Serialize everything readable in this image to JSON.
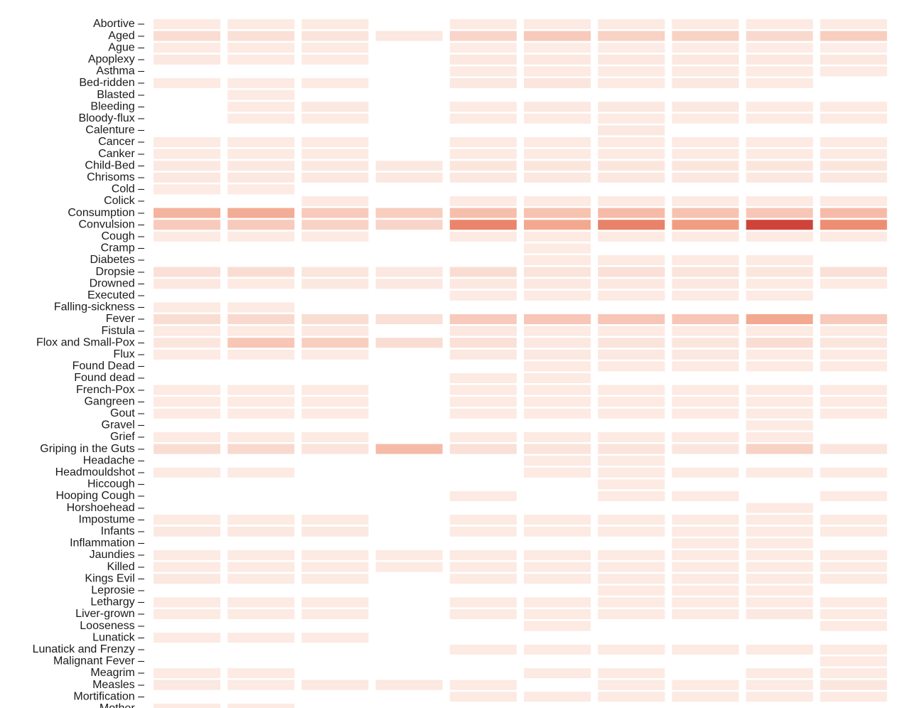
{
  "chart_data": {
    "type": "heatmap",
    "title": "",
    "xlabel": "",
    "ylabel": "",
    "color_scale": {
      "low": "#fdf3ef",
      "high": "#d0433a",
      "empty": "#ffffff"
    },
    "columns": [
      "",
      "",
      "",
      "",
      "",
      "",
      "",
      "",
      "",
      ""
    ],
    "rows": [
      "Abortive",
      "Aged",
      "Ague",
      "Apoplexy",
      "Asthma",
      "Bed-ridden",
      "Blasted",
      "Bleeding",
      "Bloody-flux",
      "Calenture",
      "Cancer",
      "Canker",
      "Child-Bed",
      "Chrisoms",
      "Cold",
      "Colick",
      "Consumption",
      "Convulsion",
      "Cough",
      "Cramp",
      "Diabetes",
      "Dropsie",
      "Drowned",
      "Executed",
      "Falling-sickness",
      "Fever",
      "Fistula",
      "Flox and Small-Pox",
      "Flux",
      "Found Dead",
      "Found dead",
      "French-Pox",
      "Gangreen",
      "Gout",
      "Gravel",
      "Grief",
      "Griping in the Guts",
      "Headache",
      "Headmouldshot",
      "Hiccough",
      "Hooping Cough",
      "Horshoehead",
      "Impostume",
      "Infants",
      "Inflammation",
      "Jaundies",
      "Killed",
      "Kings Evil",
      "Leprosie",
      "Lethargy",
      "Liver-grown",
      "Looseness",
      "Lunatick",
      "Lunatick and Frenzy",
      "Malignant Fever",
      "Meagrim",
      "Measles",
      "Mortification",
      "Mother"
    ],
    "values": [
      [
        0.05,
        0.05,
        0.05,
        null,
        0.05,
        0.05,
        0.05,
        0.05,
        0.05,
        0.05
      ],
      [
        0.12,
        0.1,
        0.08,
        0.06,
        0.16,
        0.22,
        0.18,
        0.18,
        0.14,
        0.2
      ],
      [
        0.05,
        0.05,
        0.05,
        null,
        0.04,
        0.04,
        0.04,
        0.04,
        0.04,
        0.03
      ],
      [
        0.06,
        0.05,
        0.05,
        null,
        0.06,
        0.06,
        0.06,
        0.06,
        0.06,
        0.06
      ],
      [
        null,
        null,
        null,
        null,
        0.05,
        0.05,
        0.05,
        0.05,
        0.05,
        0.05
      ],
      [
        0.05,
        0.05,
        0.05,
        null,
        0.06,
        0.07,
        0.05,
        0.06,
        0.05,
        null
      ],
      [
        null,
        0.05,
        null,
        null,
        null,
        null,
        null,
        null,
        null,
        null
      ],
      [
        null,
        0.05,
        0.06,
        null,
        0.05,
        0.06,
        0.06,
        0.06,
        0.05,
        0.05
      ],
      [
        null,
        0.05,
        0.05,
        null,
        0.05,
        0.05,
        0.05,
        0.05,
        0.05,
        0.05
      ],
      [
        null,
        null,
        null,
        null,
        null,
        null,
        0.06,
        null,
        null,
        null
      ],
      [
        0.05,
        0.05,
        0.05,
        null,
        0.05,
        0.05,
        0.05,
        0.05,
        0.05,
        0.05
      ],
      [
        0.05,
        0.05,
        0.05,
        null,
        0.05,
        0.05,
        0.05,
        0.05,
        0.05,
        0.05
      ],
      [
        0.06,
        0.06,
        0.06,
        0.06,
        0.07,
        0.07,
        0.07,
        0.07,
        0.07,
        0.07
      ],
      [
        0.06,
        0.06,
        0.06,
        0.06,
        0.06,
        0.06,
        0.06,
        0.06,
        0.06,
        0.06
      ],
      [
        0.05,
        0.05,
        null,
        null,
        null,
        null,
        null,
        null,
        null,
        null
      ],
      [
        null,
        null,
        0.05,
        null,
        0.05,
        0.05,
        0.05,
        0.05,
        0.05,
        0.05
      ],
      [
        0.34,
        0.38,
        0.22,
        0.2,
        0.28,
        0.26,
        0.3,
        0.26,
        0.24,
        0.3
      ],
      [
        0.22,
        0.22,
        0.18,
        0.16,
        0.6,
        0.4,
        0.62,
        0.46,
        1.0,
        0.55
      ],
      [
        0.05,
        0.05,
        0.05,
        null,
        0.05,
        0.05,
        0.05,
        0.05,
        0.05,
        0.05
      ],
      [
        null,
        null,
        null,
        null,
        null,
        0.04,
        null,
        null,
        null,
        null
      ],
      [
        null,
        null,
        null,
        null,
        null,
        0.05,
        0.05,
        0.05,
        0.05,
        null
      ],
      [
        0.1,
        0.12,
        0.07,
        0.06,
        0.12,
        0.08,
        0.1,
        0.08,
        0.07,
        0.1
      ],
      [
        0.06,
        0.05,
        0.06,
        0.06,
        0.06,
        0.06,
        0.06,
        0.06,
        0.05,
        0.05
      ],
      [
        null,
        null,
        null,
        null,
        0.05,
        0.05,
        0.05,
        0.05,
        0.05,
        null
      ],
      [
        0.05,
        0.05,
        null,
        null,
        null,
        null,
        null,
        null,
        null,
        null
      ],
      [
        0.12,
        0.14,
        0.12,
        0.1,
        0.22,
        0.24,
        0.24,
        0.24,
        0.4,
        0.22
      ],
      [
        0.05,
        0.05,
        0.06,
        null,
        0.06,
        0.05,
        0.05,
        0.05,
        0.05,
        0.05
      ],
      [
        0.07,
        0.24,
        0.2,
        0.12,
        0.1,
        0.06,
        0.08,
        0.07,
        0.12,
        0.07
      ],
      [
        0.05,
        0.05,
        0.05,
        null,
        0.06,
        0.06,
        0.06,
        0.06,
        0.05,
        0.05
      ],
      [
        null,
        null,
        null,
        null,
        null,
        0.05,
        0.05,
        0.05,
        0.05,
        0.05
      ],
      [
        null,
        null,
        null,
        null,
        0.05,
        0.05,
        null,
        null,
        null,
        null
      ],
      [
        0.05,
        0.05,
        0.05,
        null,
        0.05,
        0.05,
        0.05,
        0.05,
        0.05,
        0.05
      ],
      [
        0.05,
        0.05,
        0.05,
        null,
        0.05,
        0.05,
        0.05,
        0.05,
        0.05,
        0.05
      ],
      [
        0.05,
        0.05,
        0.05,
        null,
        0.05,
        0.05,
        0.05,
        0.05,
        0.05,
        0.05
      ],
      [
        null,
        null,
        null,
        null,
        null,
        null,
        null,
        null,
        0.05,
        null
      ],
      [
        0.05,
        0.05,
        0.05,
        null,
        0.05,
        0.05,
        0.05,
        0.05,
        0.05,
        null
      ],
      [
        0.12,
        0.14,
        0.08,
        0.3,
        0.1,
        0.08,
        0.08,
        0.07,
        0.18,
        0.07
      ],
      [
        null,
        null,
        null,
        null,
        null,
        0.05,
        0.05,
        null,
        null,
        null
      ],
      [
        0.05,
        0.05,
        null,
        null,
        null,
        0.05,
        0.05,
        0.05,
        0.05,
        0.05
      ],
      [
        null,
        null,
        null,
        null,
        null,
        null,
        0.05,
        null,
        null,
        null
      ],
      [
        null,
        null,
        null,
        null,
        0.05,
        null,
        0.05,
        0.05,
        null,
        0.05
      ],
      [
        null,
        null,
        null,
        null,
        null,
        null,
        null,
        null,
        0.05,
        null
      ],
      [
        0.05,
        0.05,
        0.05,
        null,
        0.05,
        0.05,
        0.05,
        0.05,
        0.05,
        0.05
      ],
      [
        0.06,
        0.06,
        0.06,
        null,
        0.05,
        0.05,
        0.05,
        0.05,
        0.05,
        0.05
      ],
      [
        null,
        null,
        null,
        null,
        null,
        null,
        null,
        0.05,
        0.05,
        null
      ],
      [
        0.05,
        0.05,
        0.05,
        0.05,
        0.05,
        0.05,
        0.05,
        0.05,
        0.05,
        0.05
      ],
      [
        0.05,
        0.05,
        0.05,
        0.05,
        0.05,
        0.05,
        0.05,
        0.05,
        0.05,
        0.05
      ],
      [
        0.06,
        0.05,
        0.05,
        null,
        0.05,
        0.05,
        0.05,
        0.05,
        0.05,
        0.05
      ],
      [
        null,
        null,
        null,
        null,
        null,
        null,
        0.05,
        0.05,
        0.05,
        null
      ],
      [
        0.05,
        0.05,
        0.05,
        null,
        0.05,
        0.05,
        0.05,
        0.05,
        0.05,
        0.05
      ],
      [
        0.05,
        0.05,
        0.05,
        null,
        0.05,
        0.05,
        0.05,
        0.05,
        0.06,
        0.05
      ],
      [
        null,
        null,
        null,
        null,
        null,
        0.05,
        null,
        null,
        null,
        0.05
      ],
      [
        0.05,
        0.05,
        0.05,
        null,
        null,
        null,
        null,
        null,
        null,
        null
      ],
      [
        null,
        null,
        null,
        null,
        0.05,
        0.05,
        0.05,
        0.05,
        0.05,
        0.05
      ],
      [
        null,
        null,
        null,
        null,
        null,
        null,
        null,
        null,
        null,
        0.05
      ],
      [
        0.05,
        0.05,
        null,
        null,
        null,
        0.05,
        0.05,
        null,
        0.05,
        0.05
      ],
      [
        0.06,
        0.05,
        0.06,
        0.06,
        0.05,
        null,
        0.05,
        0.05,
        0.05,
        0.07
      ],
      [
        null,
        null,
        null,
        null,
        0.05,
        0.05,
        0.05,
        0.05,
        0.05,
        0.05
      ],
      [
        0.05,
        0.05,
        null,
        null,
        null,
        null,
        null,
        null,
        null,
        null
      ]
    ],
    "grid": false,
    "legend": "none"
  }
}
